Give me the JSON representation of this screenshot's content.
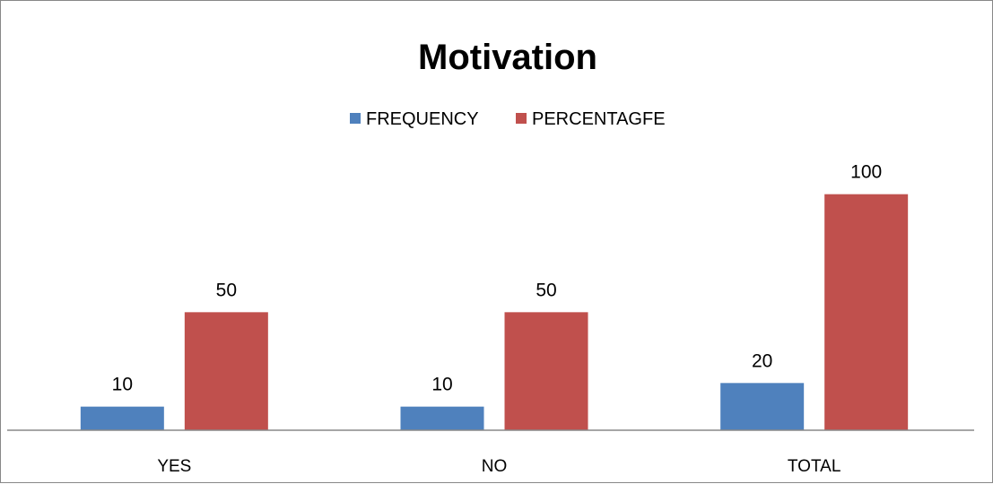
{
  "chart_data": {
    "type": "bar",
    "title": "Motivation",
    "categories": [
      "YES",
      "NO",
      "TOTAL"
    ],
    "series": [
      {
        "name": "FREQUENCY",
        "values": [
          10,
          10,
          20
        ],
        "color": "#4F81BD"
      },
      {
        "name": "PERCENTAGFE",
        "values": [
          50,
          50,
          100
        ],
        "color": "#C0504D"
      }
    ],
    "ylim": [
      0,
      120
    ],
    "grid": false,
    "legend_position": "top",
    "data_labels": true,
    "axis_color": "#888888"
  }
}
